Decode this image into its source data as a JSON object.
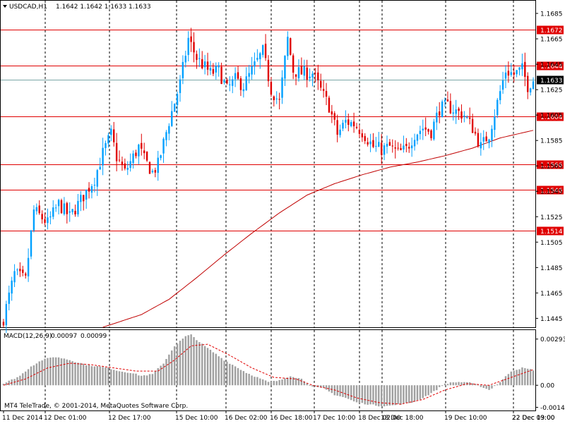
{
  "header": {
    "symbol_timeframe": "USDCAD,H1",
    "ohlc": "1.1642 1.1642 1.1633 1.1633"
  },
  "macd_header": {
    "label": "MACD(12,26,9)",
    "value1": "0.00097",
    "value2": "0.00099"
  },
  "watermark": "MT4 TeleTrade, © 2001-2014, MetaQuotes Software Corp.",
  "colors": {
    "bull": "#00a0ff",
    "bear": "#e00000",
    "level_line": "#e00000",
    "ma_line": "#c00000",
    "histogram": "#a0a0a0",
    "signal": "#e00000",
    "bid_line": "#7aa7a7",
    "grid": "#000000"
  },
  "chart_data": [
    {
      "type": "candlestick",
      "symbol": "USDCAD",
      "timeframe": "H1",
      "ylim": [
        1.1438,
        1.1695
      ],
      "y_ticks": [
        "1.1685",
        "1.1665",
        "1.1645",
        "1.1625",
        "1.1605",
        "1.1585",
        "1.1565",
        "1.1545",
        "1.1525",
        "1.1505",
        "1.1485",
        "1.1465",
        "1.1445"
      ],
      "x_ticks": [
        "11 Dec 2014",
        "12 Dec 01:00",
        "12 Dec 17:00",
        "15 Dec 10:00",
        "16 Dec 02:00",
        "16 Dec 18:00",
        "17 Dec 10:00",
        "18 Dec 02:00",
        "18 Dec 18:00",
        "19 Dec 10:00",
        "22 Dec 03:00",
        "22 Dec 19:00"
      ],
      "horizontal_levels": [
        "1.1672",
        "1.1644",
        "1.1604",
        "1.1566",
        "1.1546",
        "1.1514"
      ],
      "current_price": "1.1633",
      "close_path": [
        [
          0,
          1.1445
        ],
        [
          4,
          1.148
        ],
        [
          8,
          1.1475
        ],
        [
          11,
          1.153
        ],
        [
          16,
          1.152
        ],
        [
          20,
          1.1535
        ],
        [
          24,
          1.1525
        ],
        [
          28,
          1.1538
        ],
        [
          33,
          1.1555
        ],
        [
          36,
          1.1575
        ],
        [
          39,
          1.159
        ],
        [
          41,
          1.1572
        ],
        [
          44,
          1.156
        ],
        [
          46,
          1.1568
        ],
        [
          49,
          1.158
        ],
        [
          51,
          1.157
        ],
        [
          54,
          1.156
        ],
        [
          56,
          1.1566
        ],
        [
          60,
          1.16
        ],
        [
          64,
          1.163
        ],
        [
          67,
          1.1665
        ],
        [
          70,
          1.165
        ],
        [
          72,
          1.1645
        ],
        [
          75,
          1.1638
        ],
        [
          78,
          1.164
        ],
        [
          81,
          1.1625
        ],
        [
          84,
          1.1633
        ],
        [
          87,
          1.1628
        ],
        [
          90,
          1.164
        ],
        [
          94,
          1.1655
        ],
        [
          97,
          1.1625
        ],
        [
          100,
          1.1615
        ],
        [
          103,
          1.1665
        ],
        [
          105,
          1.164
        ],
        [
          108,
          1.1638
        ],
        [
          112,
          1.1638
        ],
        [
          116,
          1.162
        ],
        [
          118,
          1.1612
        ],
        [
          121,
          1.159
        ],
        [
          124,
          1.16
        ],
        [
          127,
          1.1598
        ],
        [
          130,
          1.1592
        ],
        [
          134,
          1.158
        ],
        [
          137,
          1.1578
        ],
        [
          140,
          1.158
        ],
        [
          143,
          1.1575
        ],
        [
          146,
          1.1578
        ],
        [
          149,
          1.159
        ],
        [
          152,
          1.1595
        ],
        [
          155,
          1.1592
        ],
        [
          158,
          1.161
        ],
        [
          161,
          1.1612
        ],
        [
          164,
          1.1608
        ],
        [
          167,
          1.1605
        ],
        [
          170,
          1.1595
        ],
        [
          173,
          1.158
        ],
        [
          176,
          1.159
        ],
        [
          179,
          1.1615
        ],
        [
          182,
          1.164
        ],
        [
          185,
          1.1637
        ],
        [
          188,
          1.1641
        ],
        [
          190,
          1.1628
        ],
        [
          192,
          1.1633
        ]
      ],
      "moving_average_path": [
        [
          36,
          1.1438
        ],
        [
          50,
          1.1448
        ],
        [
          60,
          1.146
        ],
        [
          70,
          1.1477
        ],
        [
          80,
          1.1495
        ],
        [
          90,
          1.1512
        ],
        [
          100,
          1.1528
        ],
        [
          110,
          1.1542
        ],
        [
          120,
          1.1551
        ],
        [
          130,
          1.1558
        ],
        [
          140,
          1.1564
        ],
        [
          150,
          1.1568
        ],
        [
          160,
          1.1573
        ],
        [
          170,
          1.1579
        ],
        [
          180,
          1.1587
        ],
        [
          192,
          1.1593
        ]
      ]
    },
    {
      "type": "bar",
      "name": "MACD(12,26,9)",
      "ylim": [
        -0.0016,
        0.0035
      ],
      "y_ticks": [
        "0.00293",
        "0.00",
        "-0.0014"
      ],
      "histogram_path": [
        [
          0,
          0.0001
        ],
        [
          6,
          0.0006
        ],
        [
          10,
          0.0012
        ],
        [
          14,
          0.0016
        ],
        [
          18,
          0.0018
        ],
        [
          22,
          0.0017
        ],
        [
          26,
          0.0015
        ],
        [
          30,
          0.0013
        ],
        [
          34,
          0.0012
        ],
        [
          38,
          0.0011
        ],
        [
          42,
          0.0009
        ],
        [
          46,
          0.0008
        ],
        [
          50,
          0.0006
        ],
        [
          54,
          0.0007
        ],
        [
          58,
          0.0014
        ],
        [
          62,
          0.0025
        ],
        [
          66,
          0.0031
        ],
        [
          68,
          0.0032
        ],
        [
          72,
          0.0026
        ],
        [
          76,
          0.0021
        ],
        [
          80,
          0.0016
        ],
        [
          84,
          0.0012
        ],
        [
          88,
          0.0008
        ],
        [
          92,
          0.0005
        ],
        [
          96,
          0.0002
        ],
        [
          100,
          0.0003
        ],
        [
          104,
          0.0006
        ],
        [
          108,
          0.0004
        ],
        [
          112,
          -0.0001
        ],
        [
          116,
          -0.0002
        ],
        [
          120,
          -0.0006
        ],
        [
          124,
          -0.0008
        ],
        [
          128,
          -0.0011
        ],
        [
          132,
          -0.0012
        ],
        [
          136,
          -0.0013
        ],
        [
          140,
          -0.0013
        ],
        [
          144,
          -0.0012
        ],
        [
          148,
          -0.0011
        ],
        [
          152,
          -0.0008
        ],
        [
          156,
          -0.0004
        ],
        [
          160,
          0.0001
        ],
        [
          164,
          0.0002
        ],
        [
          168,
          0.0002
        ],
        [
          172,
          0.0
        ],
        [
          176,
          -0.0003
        ],
        [
          180,
          0.0002
        ],
        [
          184,
          0.0009
        ],
        [
          188,
          0.0011
        ],
        [
          192,
          0.00097
        ]
      ],
      "signal_path": [
        [
          0,
          0.0
        ],
        [
          8,
          0.0004
        ],
        [
          16,
          0.0011
        ],
        [
          24,
          0.0014
        ],
        [
          32,
          0.0013
        ],
        [
          40,
          0.0011
        ],
        [
          48,
          0.0009
        ],
        [
          56,
          0.0009
        ],
        [
          62,
          0.0016
        ],
        [
          68,
          0.0025
        ],
        [
          74,
          0.0026
        ],
        [
          82,
          0.0019
        ],
        [
          90,
          0.0011
        ],
        [
          98,
          0.0005
        ],
        [
          106,
          0.0004
        ],
        [
          112,
          0.0
        ],
        [
          120,
          -0.0003
        ],
        [
          128,
          -0.0008
        ],
        [
          136,
          -0.0011
        ],
        [
          144,
          -0.0012
        ],
        [
          152,
          -0.0009
        ],
        [
          160,
          -0.0003
        ],
        [
          168,
          0.0001
        ],
        [
          176,
          0.0
        ],
        [
          184,
          0.0005
        ],
        [
          192,
          0.00099
        ]
      ]
    }
  ]
}
